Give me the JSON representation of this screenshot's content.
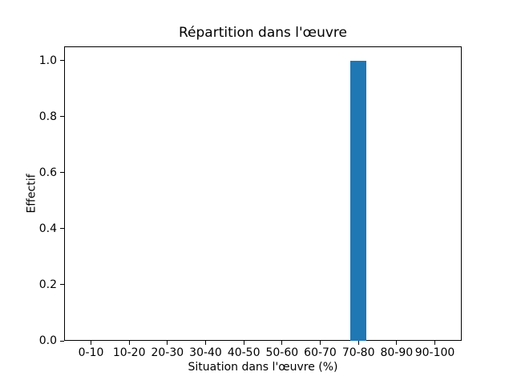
{
  "chart_data": {
    "type": "bar",
    "title": "Répartition dans l'œuvre",
    "xlabel": "Situation dans l'œuvre (%)",
    "ylabel": "Effectif",
    "categories": [
      "0-10",
      "10-20",
      "20-30",
      "30-40",
      "40-50",
      "50-60",
      "60-70",
      "70-80",
      "80-90",
      "90-100"
    ],
    "values": [
      0,
      0,
      0,
      0,
      0,
      0,
      0,
      1,
      0,
      0
    ],
    "ytick_labels": [
      "0.0",
      "0.2",
      "0.4",
      "0.6",
      "0.8",
      "1.0"
    ],
    "ytick_values": [
      0.0,
      0.2,
      0.4,
      0.6,
      0.8,
      1.0
    ],
    "ylim": [
      0,
      1.05
    ],
    "bar_color": "#1f77b4",
    "axis_color": "#000000",
    "background_color": "#ffffff",
    "grid": false,
    "legend": null
  }
}
